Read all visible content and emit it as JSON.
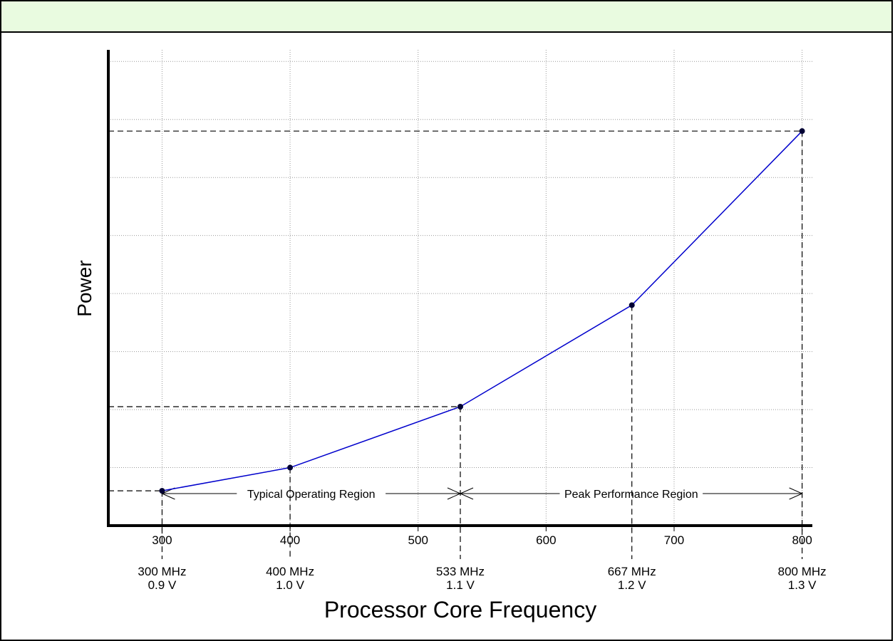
{
  "chart_data": {
    "type": "line",
    "ylabel": "Power",
    "xlabel": "Processor Core Frequency",
    "xlim": [
      258,
      808
    ],
    "ylim": [
      0,
      8.2
    ],
    "x_ticks": [
      "300",
      "400",
      "500",
      "600",
      "700",
      "800"
    ],
    "y_gridlines": [
      1,
      2,
      3,
      4,
      5,
      6,
      7,
      8
    ],
    "x": [
      300,
      400,
      533,
      667,
      800
    ],
    "y": [
      0.6,
      1.0,
      2.05,
      3.8,
      6.8
    ],
    "point_labels": [
      {
        "freq": "300 MHz",
        "volt": "0.9 V"
      },
      {
        "freq": "400 MHz",
        "volt": "1.0 V"
      },
      {
        "freq": "533 MHz",
        "volt": "1.1 V"
      },
      {
        "freq": "667 MHz",
        "volt": "1.2 V"
      },
      {
        "freq": "800 MHz",
        "volt": "1.3 V"
      }
    ],
    "regions": [
      {
        "label": "Typical Operating Region",
        "x_start": 300,
        "x_end": 533
      },
      {
        "label": "Peak Performance Region",
        "x_start": 533,
        "x_end": 800
      }
    ],
    "line_color": "#0000cc",
    "point_color": "#000033",
    "grid": true
  }
}
